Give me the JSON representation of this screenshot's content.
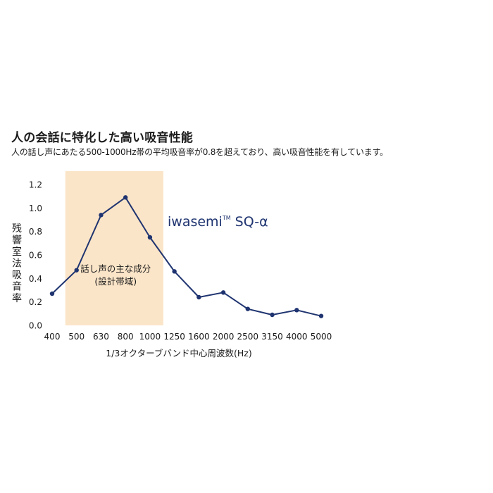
{
  "heading": {
    "title": "人の会話に特化した高い吸音性能",
    "subtitle": "人の話し声にあたる500-1000Hz帯の平均吸音率が0.8を超えており、高い吸音性能を有しています。"
  },
  "colors": {
    "line": "#1f3470",
    "band": "#fbe5c8",
    "text": "#1a1a1a"
  },
  "chart_data": {
    "type": "line",
    "categories": [
      "400",
      "500",
      "630",
      "800",
      "1000",
      "1250",
      "1600",
      "2000",
      "2500",
      "3150",
      "4000",
      "5000"
    ],
    "series": [
      {
        "name": "iwasemi™ SQ-α",
        "values": [
          0.27,
          0.47,
          0.94,
          1.09,
          0.75,
          0.46,
          0.24,
          0.28,
          0.14,
          0.09,
          0.13,
          0.08
        ]
      }
    ],
    "ylim": [
      0,
      1.2
    ],
    "yticks": [
      "0.0",
      "0.2",
      "0.4",
      "0.6",
      "0.8",
      "1.0",
      "1.2"
    ],
    "ylabel": "残響室法吸音率",
    "xlabel": "1/3オクターブバンド中心周波数(Hz)",
    "series_label": {
      "main": "iwasemi",
      "superscript": "TM",
      "suffix": " SQ-α"
    },
    "band": {
      "from": "500",
      "to": "1000",
      "label_line1": "話し声の主な成分",
      "label_line2": "(設計帯域)"
    },
    "grid": false,
    "legend": "none"
  }
}
